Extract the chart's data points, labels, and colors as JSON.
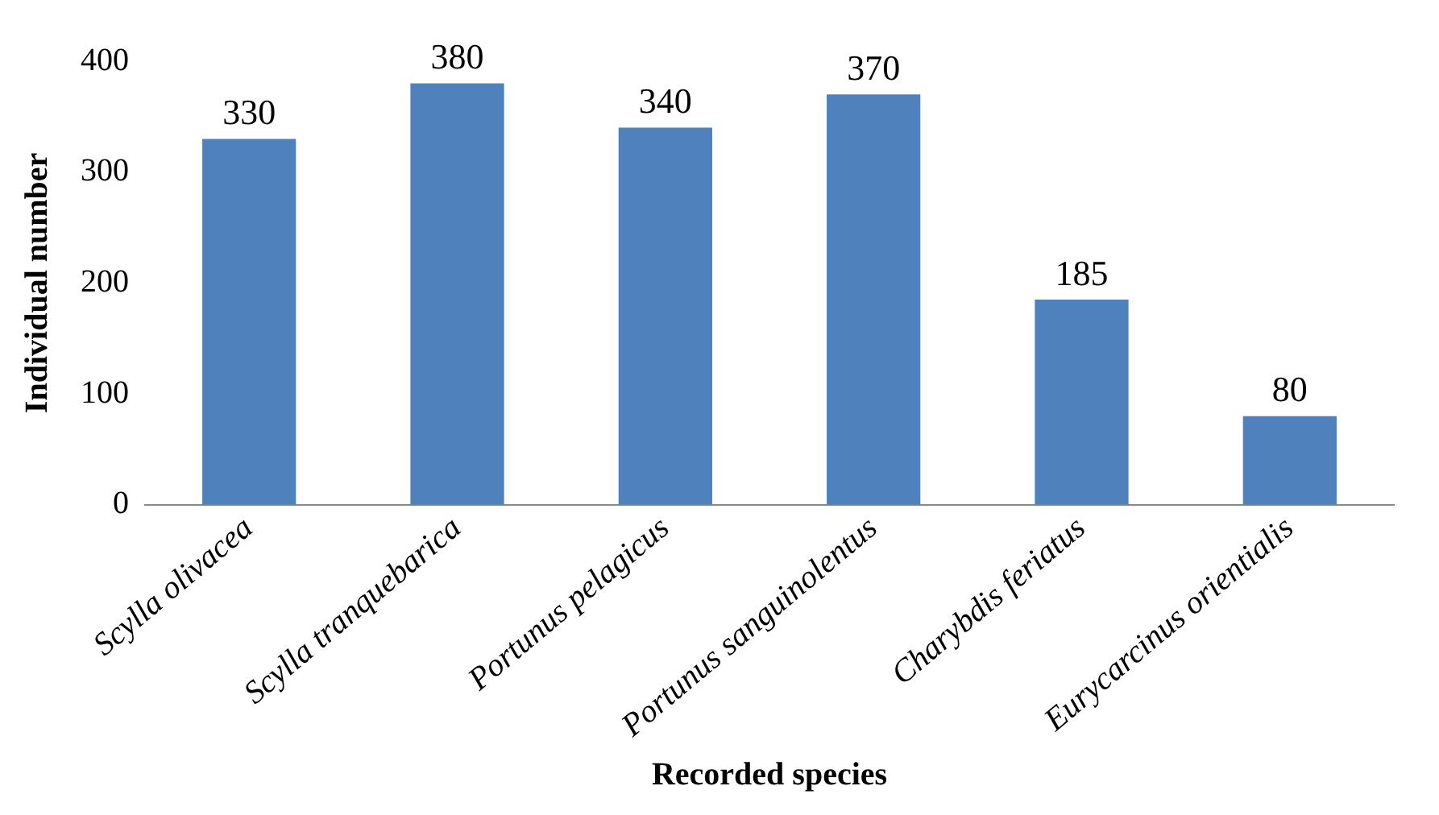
{
  "chart_data": {
    "type": "bar",
    "xlabel": "Recorded species",
    "ylabel": "Individual number",
    "categories": [
      "Scylla olivacea",
      "Scylla tranquebarica",
      "Portunus pelagicus",
      "Portunus sanguinolentus",
      "Charybdis feriatus",
      "Eurycarcinus orientialis"
    ],
    "values": [
      330,
      380,
      340,
      370,
      185,
      80
    ],
    "color": "#4f81bd",
    "ylim": [
      0,
      400
    ],
    "yticks": [
      0,
      100,
      200,
      300,
      400
    ],
    "grid": false,
    "legend": false,
    "data_labels": true
  }
}
